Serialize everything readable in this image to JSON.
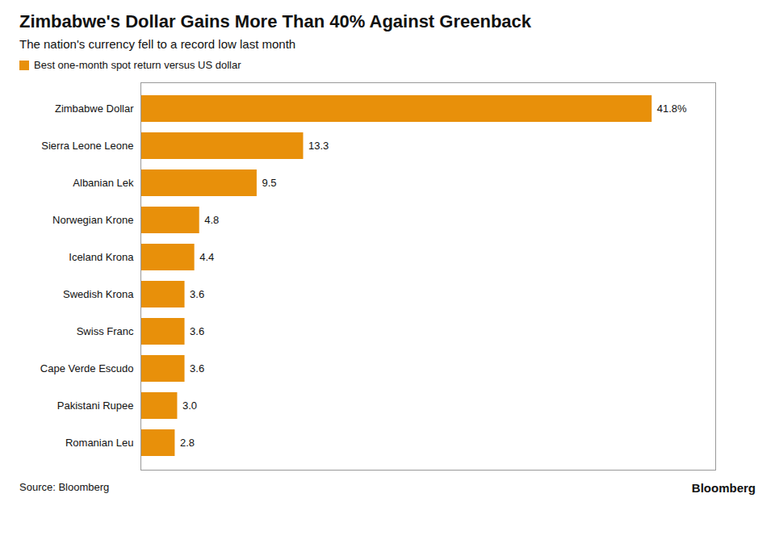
{
  "chart_data": {
    "type": "bar",
    "orientation": "horizontal",
    "title": "Zimbabwe's Dollar Gains More Than 40% Against Greenback",
    "subtitle": "The nation's currency fell to a record low last month",
    "categories": [
      "Zimbabwe Dollar",
      "Sierra Leone Leone",
      "Albanian Lek",
      "Norwegian Krone",
      "Iceland Krona",
      "Swedish Krona",
      "Swiss Franc",
      "Cape Verde Escudo",
      "Pakistani Rupee",
      "Romanian Leu"
    ],
    "series": [
      {
        "name": "Best one-month spot return versus US dollar",
        "color": "#E8900A",
        "values": [
          41.8,
          13.3,
          9.5,
          4.8,
          4.4,
          3.6,
          3.6,
          3.6,
          3.0,
          2.8
        ],
        "value_labels": [
          "41.8%",
          "13.3",
          "9.5",
          "4.8",
          "4.4",
          "3.6",
          "3.6",
          "3.6",
          "3.0",
          "2.8"
        ]
      }
    ],
    "xlim": [
      0,
      47
    ],
    "data_labels": true,
    "tick_labels": "y",
    "grid": false,
    "legend": "top-left",
    "annotations": [
      "Source: Bloomberg",
      "Bloomberg"
    ]
  }
}
